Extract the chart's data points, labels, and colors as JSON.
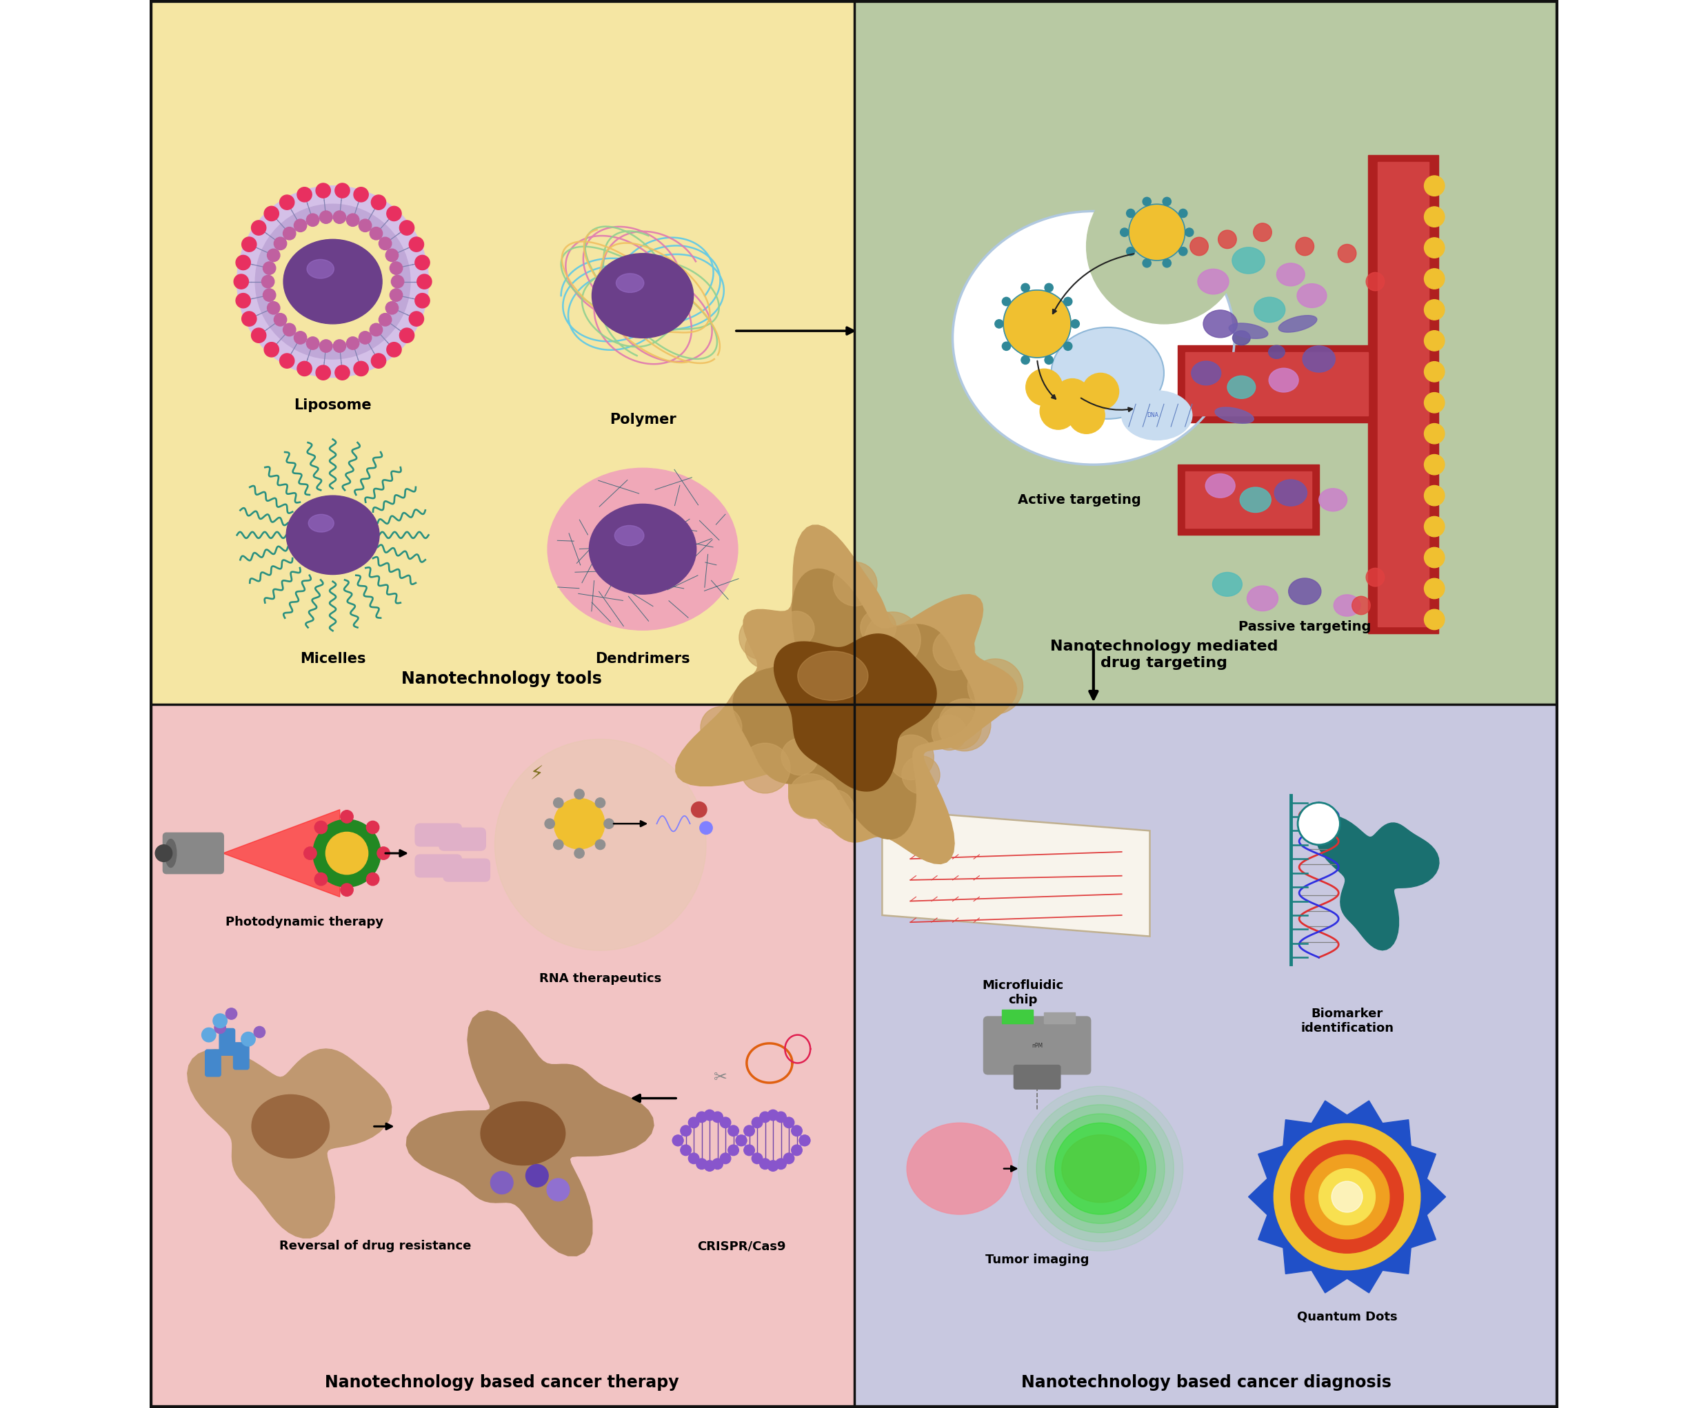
{
  "bg_top_left": "#F5E6A3",
  "bg_top_right": "#B8C9A3",
  "bg_bot_left": "#F2C4C4",
  "bg_bot_right": "#C8C8E0",
  "border_color": "#111111",
  "purple_dark": "#6B3F8A",
  "purple_mid": "#7B4FAA",
  "purple_light": "#9B6FCA",
  "pink_red": "#E83060",
  "teal": "#2A9080",
  "pink_dendri": "#E890A0",
  "cyan_polymer": "#60C8E0",
  "pink_polymer": "#E080B0",
  "yellow_gold": "#F0C030",
  "title_top_left": "Nanotechnology tools",
  "title_top_right": "Nanotechnology mediated\ndrug targeting",
  "title_bot_left": "Nanotechnology based cancer therapy",
  "title_bot_right": "Nanotechnology based cancer diagnosis",
  "label_liposome": "Liposome",
  "label_polymer": "Polymer",
  "label_micelles": "Micelles",
  "label_dendrimers": "Dendrimers",
  "label_active": "Active targeting",
  "label_passive": "Passive targeting",
  "label_photo": "Photodynamic therapy",
  "label_rna": "RNA therapeutics",
  "label_reversal": "Reversal of drug resistance",
  "label_crispr": "CRISPR/Cas9",
  "label_chip": "Microfluidic\nchip",
  "label_tumor": "Tumor imaging",
  "label_biomarker": "Biomarker\nidentification",
  "label_quantum": "Quantum Dots"
}
